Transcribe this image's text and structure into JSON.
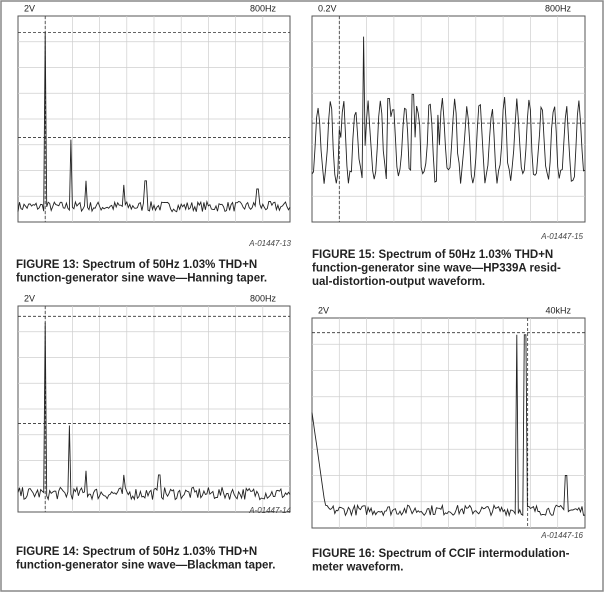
{
  "figures": [
    {
      "header_left": "2V",
      "header_right": "800Hz",
      "code": "A-01447-13",
      "caption": [
        "FIGURE 13: Spectrum of 50Hz 1.03% THD+N",
        "function-generator sine wave—Hanning taper."
      ]
    },
    {
      "header_left": "0.2V",
      "header_right": "800Hz",
      "code": "A-01447-15",
      "caption": [
        "FIGURE 15: Spectrum of 50Hz 1.03% THD+N",
        "function-generator sine wave—HP339A resid-",
        "ual-distortion-output waveform."
      ]
    },
    {
      "header_left": "2V",
      "header_right": "800Hz",
      "code": "A-01447-14",
      "caption": [
        "FIGURE 14: Spectrum of 50Hz 1.03% THD+N",
        "function-generator sine wave—Blackman taper."
      ]
    },
    {
      "header_left": "2V",
      "header_right": "40kHz",
      "code": "A-01447-16",
      "caption": [
        "FIGURE 16: Spectrum of CCIF intermodulation-",
        "meter waveform."
      ]
    }
  ]
}
